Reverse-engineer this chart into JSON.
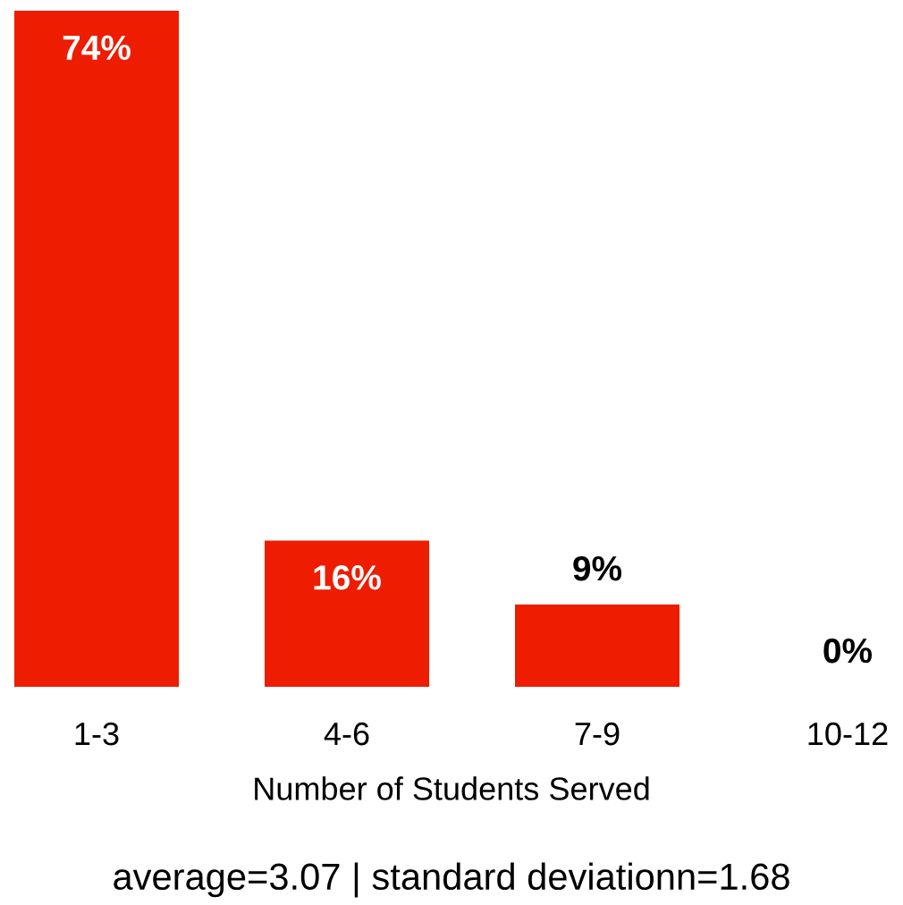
{
  "chart_data": {
    "type": "bar",
    "categories": [
      "1-3",
      "4-6",
      "7-9",
      "10-12"
    ],
    "values": [
      74,
      16,
      9,
      0
    ],
    "value_labels": [
      "74%",
      "16%",
      "9%",
      "0%"
    ],
    "color": "#ee1c00",
    "xlabel": "Number of Students Served",
    "annotations": [
      "average=3.07 | standard deviationn=1.68"
    ],
    "grid": false,
    "legend": false
  }
}
